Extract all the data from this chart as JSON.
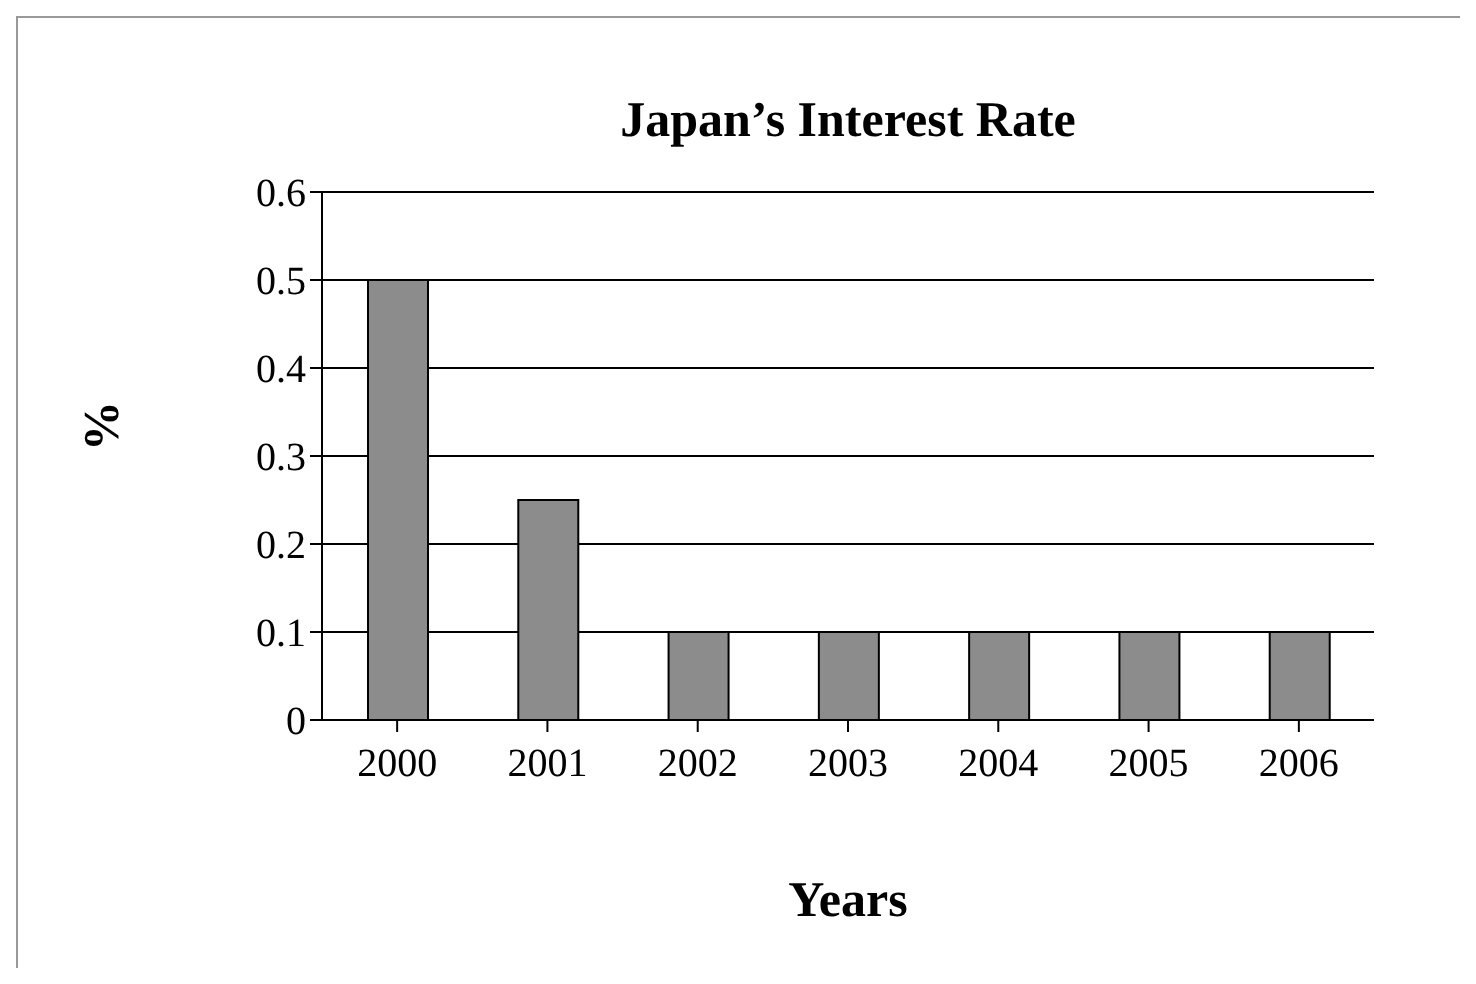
{
  "chart_data": {
    "type": "bar",
    "title": "Japan’s Interest Rate",
    "xlabel": "Years",
    "ylabel": "%",
    "categories": [
      "2000",
      "2001",
      "2002",
      "2003",
      "2004",
      "2005",
      "2006"
    ],
    "values": [
      0.5,
      0.25,
      0.1,
      0.1,
      0.1,
      0.1,
      0.1
    ],
    "color": "#8c8c8c",
    "ylim": [
      0,
      0.6
    ],
    "yticks": [
      0,
      0.1,
      0.2,
      0.3,
      0.4,
      0.5,
      0.6
    ],
    "grid": "y"
  }
}
